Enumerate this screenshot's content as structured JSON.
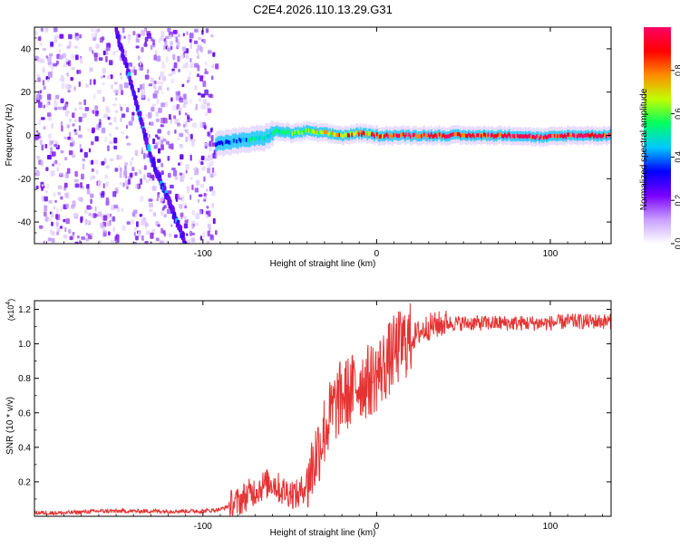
{
  "title": "C2E4.2026.110.13.29.G31",
  "chart_data": [
    {
      "type": "heatmap",
      "name": "spectrogram",
      "xlabel": "Height of straight line (km)",
      "ylabel": "Frequency (Hz)",
      "xlim": [
        -197,
        135
      ],
      "ylim": [
        -50,
        50
      ],
      "xticks": [
        -100,
        0,
        100
      ],
      "xtick_labels": [
        "-100",
        "0",
        "100"
      ],
      "yticks": [
        -40,
        -20,
        0,
        20,
        40
      ],
      "ytick_labels": [
        "-40",
        "-20",
        "0",
        "20",
        "40"
      ],
      "noise_region_x": [
        -197,
        -93
      ],
      "signal_line": {
        "x": [
          -93,
          -85,
          -75,
          -65,
          -58,
          -50,
          -40,
          -30,
          -20,
          -10,
          0,
          20,
          50,
          80,
          95,
          110,
          135
        ],
        "freq": [
          -4,
          -3,
          -2,
          -1,
          2,
          1,
          2,
          1,
          0,
          1,
          0,
          0,
          0,
          0,
          -1,
          0,
          0
        ]
      },
      "drift_line": {
        "x": [
          -150,
          -140,
          -130,
          -120,
          -110
        ],
        "freq": [
          48,
          20,
          -10,
          -30,
          -50
        ]
      },
      "colorbar": {
        "label": "Normalized spectral amplitude",
        "range": [
          0,
          1
        ],
        "ticks": [
          0,
          0.2,
          0.4,
          0.6,
          0.8
        ],
        "tick_labels": [
          "0.0",
          "0.2",
          "0.4",
          "0.6",
          "0.8"
        ],
        "colors": [
          "#ffffff",
          "#c8a0ff",
          "#7a00ff",
          "#0000ff",
          "#00c8ff",
          "#00ff60",
          "#c0ff00",
          "#ff8c00",
          "#ff0000",
          "#ff0066"
        ]
      }
    },
    {
      "type": "line",
      "name": "snr",
      "xlabel": "Height of straight line (km)",
      "ylabel": "SNR (10 * v/v)",
      "exponent_label": "(x10",
      "exponent_power": "4",
      "exponent_close": ")",
      "xlim": [
        -197,
        135
      ],
      "ylim": [
        0,
        1.25
      ],
      "xticks": [
        -100,
        0,
        100
      ],
      "xtick_labels": [
        "-100",
        "0",
        "100"
      ],
      "yticks": [
        0.2,
        0.4,
        0.6,
        0.8,
        1.0,
        1.2
      ],
      "ytick_labels": [
        "0.2",
        "0.4",
        "0.6",
        "0.8",
        "1.0",
        "1.2"
      ],
      "color": "#e53333",
      "series": [
        {
          "name": "SNR",
          "x": [
            -197,
            -180,
            -160,
            -140,
            -120,
            -100,
            -90,
            -80,
            -75,
            -70,
            -65,
            -60,
            -55,
            -50,
            -45,
            -40,
            -35,
            -30,
            -25,
            -20,
            -15,
            -10,
            -5,
            0,
            5,
            10,
            15,
            20,
            25,
            30,
            35,
            40,
            45,
            50,
            60,
            70,
            80,
            90,
            100,
            110,
            120,
            135
          ],
          "y": [
            0.02,
            0.02,
            0.03,
            0.03,
            0.03,
            0.03,
            0.04,
            0.08,
            0.12,
            0.15,
            0.18,
            0.2,
            0.15,
            0.14,
            0.12,
            0.2,
            0.35,
            0.5,
            0.62,
            0.7,
            0.72,
            0.78,
            0.78,
            0.82,
            0.88,
            0.95,
            1.0,
            1.03,
            1.07,
            1.1,
            1.11,
            1.12,
            1.12,
            1.12,
            1.12,
            1.12,
            1.12,
            1.12,
            1.12,
            1.13,
            1.13,
            1.13
          ]
        }
      ]
    }
  ]
}
